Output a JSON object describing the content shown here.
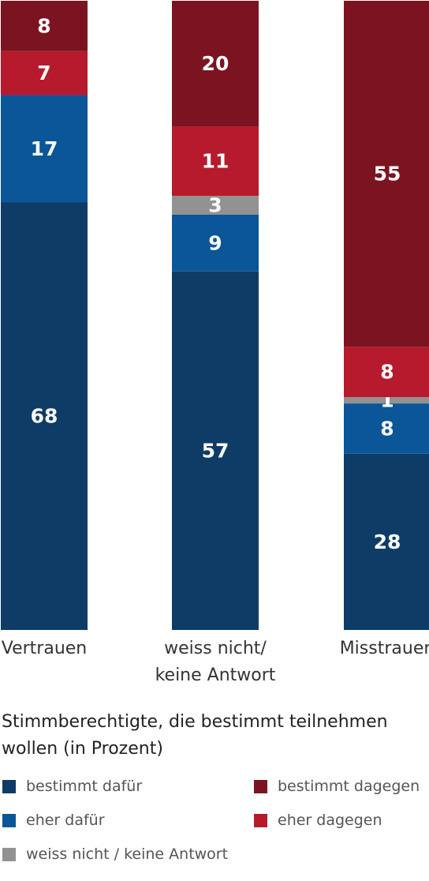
{
  "chart_data": {
    "type": "bar",
    "stacked": true,
    "categories": [
      "Vertrauen",
      [
        "weiss nicht/",
        "keine Antwort"
      ],
      "Misstrauen"
    ],
    "series": [
      {
        "name": "bestimmt dafür",
        "color": "#0e3c67",
        "values": [
          68,
          57,
          28
        ]
      },
      {
        "name": "eher dafür",
        "color": "#0a5698",
        "values": [
          17,
          9,
          8
        ]
      },
      {
        "name": "weiss nicht / keine Antwort",
        "color": "#929292",
        "values": [
          0,
          3,
          1
        ]
      },
      {
        "name": "eher dagegen",
        "color": "#b61a2c",
        "values": [
          7,
          11,
          8
        ]
      },
      {
        "name": "bestimmt dagegen",
        "color": "#7b1420",
        "values": [
          8,
          20,
          55
        ]
      }
    ],
    "ylim": [
      0,
      100
    ],
    "unit": "Prozent",
    "title": "Stimmberechtigte, die bestimmt teilnehmen wollen (in Prozent)"
  },
  "legend": [
    {
      "label": "bestimmt dafür",
      "color": "#0e3c67"
    },
    {
      "label": "bestimmt dagegen",
      "color": "#7b1420"
    },
    {
      "label": "eher dafür",
      "color": "#0a5698"
    },
    {
      "label": "eher dagegen",
      "color": "#b61a2c"
    },
    {
      "label": "weiss nicht / keine Antwort",
      "color": "#929292"
    }
  ]
}
